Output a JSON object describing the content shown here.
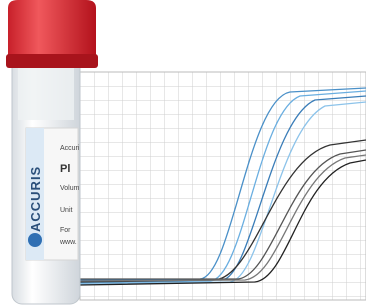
{
  "label": {
    "brand": "ACCURIS",
    "lines": [
      "Accuri",
      "Pl",
      "Volum",
      "Unit",
      "For",
      "www."
    ]
  }
}
